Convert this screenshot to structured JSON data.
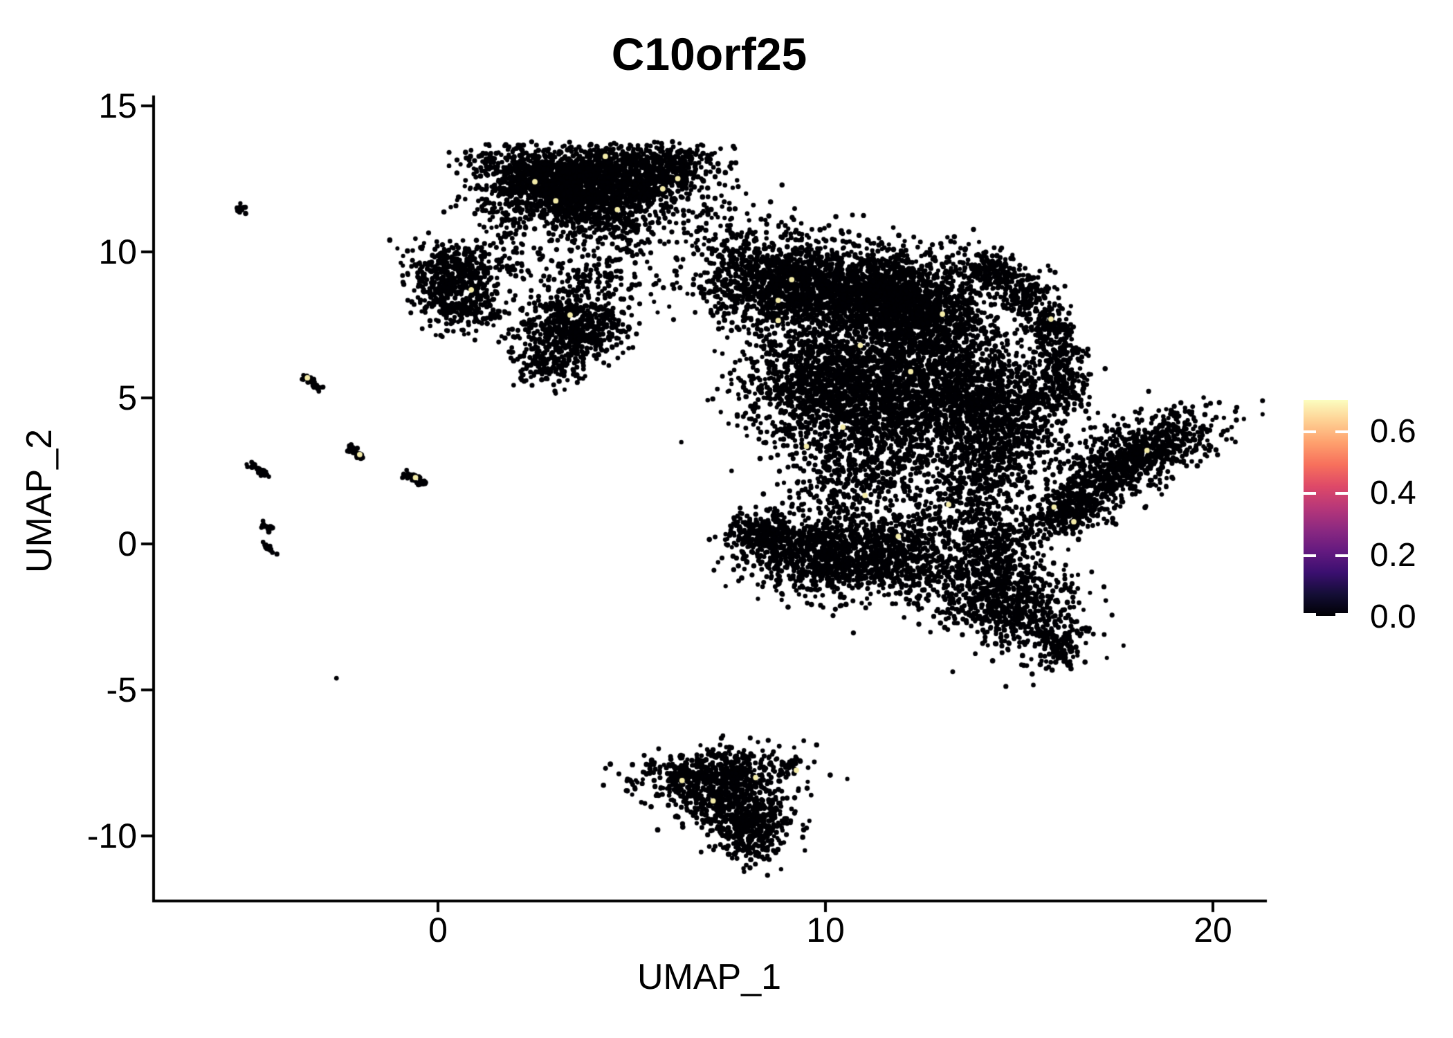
{
  "figure": {
    "title": "C10orf25",
    "x_axis": {
      "label": "UMAP_1",
      "tick_labels": [
        "0",
        "10",
        "20"
      ],
      "tick_values": [
        0,
        10,
        20
      ]
    },
    "y_axis": {
      "label": "UMAP_2",
      "tick_labels": [
        "15",
        "10",
        "5",
        "0",
        "-5",
        "-10"
      ],
      "tick_values": [
        15,
        10,
        5,
        0,
        -5,
        -10
      ]
    },
    "colors": {
      "background": "#FFFFFF",
      "axis": "#000000",
      "text": "#000000",
      "point": "#000004",
      "highlight_point": "#F3EBA8"
    }
  },
  "legend": {
    "tick_labels": [
      "0.6",
      "0.4",
      "0.2",
      "0.0"
    ],
    "tick_values": [
      0.6,
      0.4,
      0.2,
      0.0
    ],
    "scale_max": 0.7,
    "gradient_stops": [
      [
        0.0,
        "#000004"
      ],
      [
        0.1,
        "#140E36"
      ],
      [
        0.2,
        "#3B0F70"
      ],
      [
        0.3,
        "#641A80"
      ],
      [
        0.4,
        "#8C2981"
      ],
      [
        0.5,
        "#B73779"
      ],
      [
        0.6,
        "#DE4968"
      ],
      [
        0.7,
        "#F7705C"
      ],
      [
        0.8,
        "#FE9F6D"
      ],
      [
        0.9,
        "#FECF92"
      ],
      [
        1.0,
        "#FCFDBF"
      ]
    ]
  },
  "chart_data": {
    "type": "scatter",
    "title": "C10orf25",
    "xlabel": "UMAP_1",
    "ylabel": "UMAP_2",
    "xlim": [
      -7.3,
      21.3
    ],
    "ylim": [
      -12.2,
      15.3
    ],
    "x_ticks": [
      0,
      10,
      20
    ],
    "y_ticks": [
      15,
      10,
      5,
      0,
      -5,
      -10
    ],
    "grid": false,
    "legend_position": "right",
    "color_scale": {
      "palette": "magma",
      "domain": [
        0.0,
        0.7
      ],
      "legend_ticks": [
        0.0,
        0.2,
        0.4,
        0.6
      ]
    },
    "point_radius_px": 3.4,
    "seed": 11,
    "clusters": [
      [
        "top-left-lobe",
        2.7,
        12.6,
        0.85,
        0.5,
        -12,
        800
      ],
      [
        "top-right-lobe",
        4.6,
        12.55,
        1.05,
        0.55,
        4,
        1000
      ],
      [
        "top-lower-band",
        3.6,
        11.7,
        1.15,
        0.45,
        -4,
        550
      ],
      [
        "top-right-tip",
        6.1,
        12.9,
        0.5,
        0.4,
        20,
        220
      ],
      [
        "top-bottom-fringe",
        4.3,
        10.9,
        0.9,
        0.45,
        -8,
        170
      ],
      [
        "top-left-bridge",
        1.7,
        10.9,
        0.4,
        0.65,
        15,
        60
      ],
      [
        "top-right-bridge",
        6.9,
        11.2,
        0.45,
        0.7,
        -25,
        50
      ],
      [
        "mid-sparse",
        4.0,
        9.2,
        0.95,
        0.8,
        0,
        200
      ],
      [
        "left-upper-lobe",
        0.55,
        9.55,
        0.7,
        0.4,
        -5,
        300
      ],
      [
        "left-lower-lobe",
        0.55,
        8.25,
        0.6,
        0.45,
        -20,
        280
      ],
      [
        "left-bridge",
        0.1,
        8.9,
        0.3,
        0.35,
        0,
        70
      ],
      [
        "small-mid-blob",
        3.4,
        7.4,
        0.68,
        0.6,
        0,
        600
      ],
      [
        "small-mid-tail",
        2.85,
        6.1,
        0.5,
        0.4,
        -20,
        130
      ],
      [
        "main-upper-wing",
        9.0,
        8.9,
        1.15,
        0.85,
        -18,
        1500
      ],
      [
        "main-top-a",
        11.3,
        8.6,
        0.9,
        0.75,
        8,
        1100
      ],
      [
        "main-top-b",
        12.6,
        7.8,
        0.8,
        0.8,
        0,
        900
      ],
      [
        "main-mid-left",
        10.2,
        5.4,
        1.15,
        1.05,
        12,
        1500
      ],
      [
        "main-mid-right",
        12.9,
        5.2,
        1.2,
        1.1,
        0,
        1500
      ],
      [
        "main-right-lobe",
        14.9,
        4.6,
        0.75,
        0.95,
        10,
        550
      ],
      [
        "hook-top",
        14.35,
        9.3,
        0.55,
        0.4,
        -30,
        220
      ],
      [
        "hook-arc-1",
        15.2,
        8.5,
        0.35,
        0.35,
        0,
        130
      ],
      [
        "hook-arc-2",
        15.8,
        7.5,
        0.33,
        0.4,
        0,
        130
      ],
      [
        "hook-arc-3",
        16.1,
        6.4,
        0.3,
        0.45,
        0,
        120
      ],
      [
        "hook-arc-4",
        16.2,
        5.3,
        0.3,
        0.4,
        0,
        110
      ],
      [
        "lower-left-lobe",
        9.6,
        -0.3,
        0.85,
        0.7,
        -15,
        650
      ],
      [
        "lower-left-arm",
        8.4,
        0.35,
        0.5,
        0.38,
        -10,
        240
      ],
      [
        "lower-center",
        11.6,
        -0.4,
        1.15,
        0.75,
        -5,
        850
      ],
      [
        "lower-right-blob",
        14.7,
        -1.9,
        1.0,
        0.75,
        -28,
        780
      ],
      [
        "lower-right-tip",
        15.9,
        -3.5,
        0.3,
        0.42,
        -40,
        90
      ],
      [
        "connector-mid",
        13.6,
        1.6,
        0.8,
        0.8,
        0,
        320
      ],
      [
        "connector-right",
        14.5,
        -0.1,
        0.55,
        0.6,
        0,
        220
      ],
      [
        "center-fill",
        10.9,
        2.6,
        0.9,
        0.9,
        0,
        500
      ],
      [
        "right-mid-fill",
        14.2,
        3.0,
        0.6,
        0.8,
        0,
        250
      ],
      [
        "right-band",
        18.0,
        3.0,
        1.15,
        0.5,
        33,
        850
      ],
      [
        "right-band-tail",
        16.6,
        1.4,
        0.6,
        0.45,
        30,
        260
      ],
      [
        "right-band-trail",
        15.9,
        0.9,
        0.45,
        0.4,
        20,
        110
      ],
      [
        "bottom-top-band",
        7.1,
        -7.85,
        1.0,
        0.42,
        6,
        550
      ],
      [
        "bottom-mid",
        7.5,
        -8.9,
        0.8,
        0.5,
        -22,
        450
      ],
      [
        "bottom-tip",
        8.1,
        -9.9,
        0.45,
        0.5,
        -10,
        260
      ]
    ],
    "streaks": [
      [
        -5.15,
        11.55,
        -4.95,
        11.35,
        14
      ],
      [
        -3.45,
        5.75,
        -3.05,
        5.3,
        40
      ],
      [
        -2.3,
        3.35,
        -1.95,
        2.95,
        36
      ],
      [
        -4.85,
        2.75,
        -4.35,
        2.35,
        34
      ],
      [
        -0.95,
        2.5,
        -0.35,
        2.05,
        36
      ],
      [
        -4.55,
        0.72,
        -4.3,
        0.5,
        16
      ],
      [
        -4.45,
        0.05,
        -4.25,
        -0.3,
        14
      ],
      [
        8.85,
        -7.85,
        9.35,
        -7.3,
        35
      ],
      [
        15.5,
        -3.0,
        16.3,
        -4.15,
        60
      ]
    ],
    "singletons": [
      [
        -2.62,
        -4.6
      ],
      [
        6.7,
        10.4
      ]
    ],
    "highlights": [
      [
        4.32,
        13.27
      ],
      [
        3.04,
        11.75
      ],
      [
        6.19,
        12.51
      ],
      [
        5.8,
        12.16
      ],
      [
        4.63,
        11.45
      ],
      [
        2.5,
        12.4
      ],
      [
        0.86,
        8.7
      ],
      [
        3.41,
        7.84
      ],
      [
        9.13,
        9.05
      ],
      [
        8.78,
        8.34
      ],
      [
        8.78,
        7.65
      ],
      [
        13.02,
        7.87
      ],
      [
        15.82,
        7.7
      ],
      [
        10.45,
        4.0
      ],
      [
        9.51,
        3.34
      ],
      [
        11.02,
        1.66
      ],
      [
        13.18,
        1.35
      ],
      [
        11.88,
        0.26
      ],
      [
        16.41,
        0.76
      ],
      [
        12.2,
        5.9
      ],
      [
        10.9,
        6.8
      ],
      [
        15.9,
        1.26
      ],
      [
        18.3,
        3.2
      ],
      [
        6.3,
        -8.1
      ],
      [
        8.2,
        -8.0
      ],
      [
        9.25,
        -7.75
      ],
      [
        7.1,
        -8.8
      ],
      [
        -3.37,
        5.69
      ],
      [
        -2.02,
        3.06
      ],
      [
        -0.58,
        2.27
      ]
    ]
  }
}
